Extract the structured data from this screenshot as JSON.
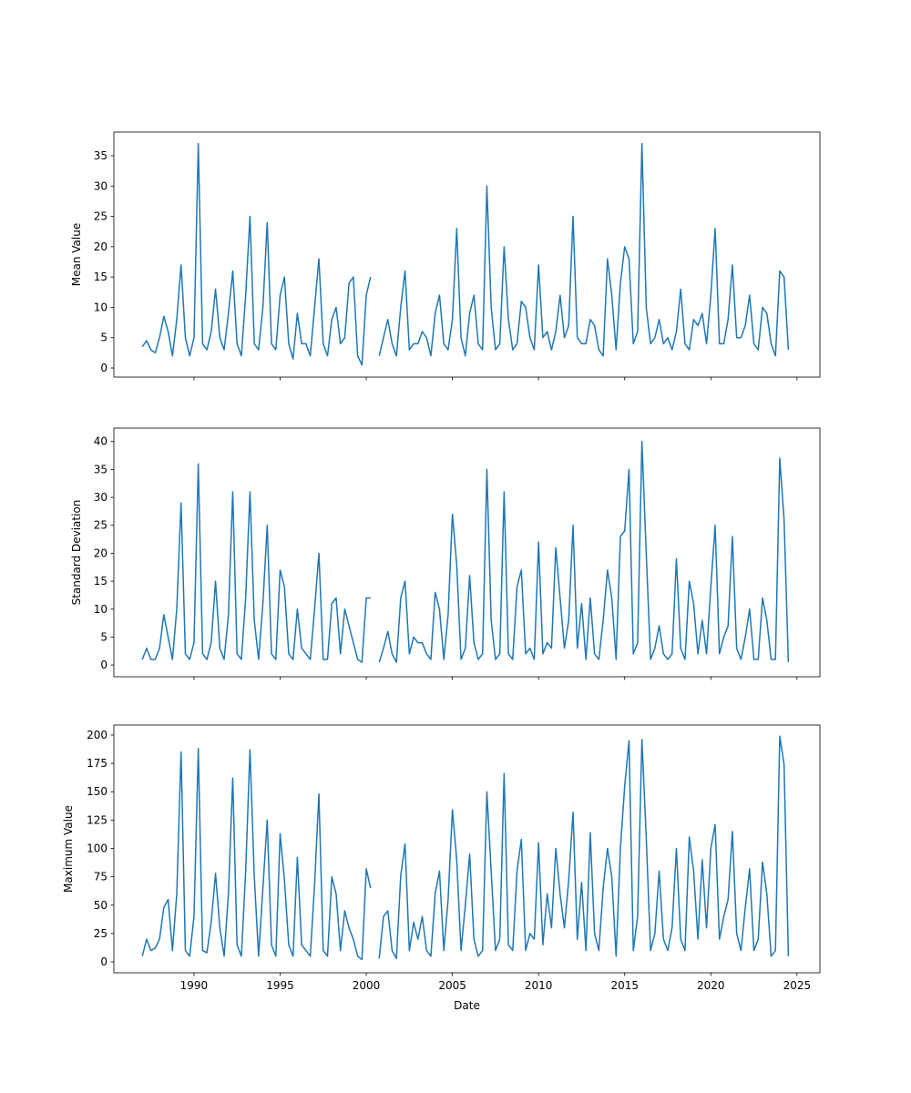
{
  "chart_data": [
    {
      "type": "line",
      "ylabel": "Mean Value",
      "xlim": [
        1985.35,
        2026.33
      ],
      "ylim": [
        -1.5,
        38.9
      ],
      "xticks": [
        1990,
        1995,
        2000,
        2005,
        2010,
        2015,
        2020,
        2025
      ],
      "xtick_labels": false,
      "yticks": [
        0,
        5,
        10,
        15,
        20,
        25,
        30,
        35
      ],
      "x": [
        1987,
        1987.25,
        1987.5,
        1987.75,
        1988,
        1988.25,
        1988.5,
        1988.75,
        1989,
        1989.25,
        1989.5,
        1989.75,
        1990,
        1990.25,
        1990.5,
        1990.75,
        1991,
        1991.25,
        1991.5,
        1991.75,
        1992,
        1992.25,
        1992.5,
        1992.75,
        1993,
        1993.25,
        1993.5,
        1993.75,
        1994,
        1994.25,
        1994.5,
        1994.75,
        1995,
        1995.25,
        1995.5,
        1995.75,
        1996,
        1996.25,
        1996.5,
        1996.75,
        1997,
        1997.25,
        1997.5,
        1997.75,
        1998,
        1998.25,
        1998.5,
        1998.75,
        1999,
        1999.25,
        1999.5,
        1999.75,
        2000,
        2000.25,
        2000.5,
        2000.75,
        2001,
        2001.25,
        2001.5,
        2001.75,
        2002,
        2002.25,
        2002.5,
        2002.75,
        2003,
        2003.25,
        2003.5,
        2003.75,
        2004,
        2004.25,
        2004.5,
        2004.75,
        2005,
        2005.25,
        2005.5,
        2005.75,
        2006,
        2006.25,
        2006.5,
        2006.75,
        2007,
        2007.25,
        2007.5,
        2007.75,
        2008,
        2008.25,
        2008.5,
        2008.75,
        2009,
        2009.25,
        2009.5,
        2009.75,
        2010,
        2010.25,
        2010.5,
        2010.75,
        2011,
        2011.25,
        2011.5,
        2011.75,
        2012,
        2012.25,
        2012.5,
        2012.75,
        2013,
        2013.25,
        2013.5,
        2013.75,
        2014,
        2014.25,
        2014.5,
        2014.75,
        2015,
        2015.25,
        2015.5,
        2015.75,
        2016,
        2016.25,
        2016.5,
        2016.75,
        2017,
        2017.25,
        2017.5,
        2017.75,
        2018,
        2018.25,
        2018.5,
        2018.75,
        2019,
        2019.25,
        2019.5,
        2019.75,
        2020,
        2020.25,
        2020.5,
        2020.75,
        2021,
        2021.25,
        2021.5,
        2021.75,
        2022,
        2022.25,
        2022.5,
        2022.75,
        2023,
        2023.25,
        2023.5,
        2023.75,
        2024,
        2024.25,
        2024.5
      ],
      "series": [
        {
          "color": "#1f77b4",
          "values": [
            3.5,
            4.5,
            3,
            2.5,
            5,
            8.5,
            6,
            2,
            8,
            17,
            5,
            2,
            5,
            37,
            4,
            3,
            6,
            13,
            5,
            3,
            9,
            16,
            4,
            2,
            12,
            25,
            4,
            3,
            10,
            24,
            4,
            3,
            12,
            15,
            4,
            1.5,
            9,
            4,
            4,
            2,
            10,
            18,
            4,
            2,
            8,
            10,
            4,
            5,
            14,
            15,
            2,
            0.5,
            12,
            15,
            null,
            2,
            5,
            8,
            4,
            2,
            10,
            16,
            3,
            4,
            4,
            6,
            5,
            2,
            9,
            12,
            4,
            3,
            8,
            23,
            5,
            2,
            9,
            12,
            4,
            3,
            30,
            10,
            3,
            4,
            20,
            8,
            3,
            4,
            11,
            10,
            5,
            3,
            17,
            5,
            6,
            3,
            6,
            12,
            5,
            7,
            25,
            5,
            4,
            4,
            8,
            7,
            3,
            2,
            18,
            12,
            3,
            14,
            20,
            18,
            4,
            6,
            37,
            10,
            4,
            5,
            8,
            4,
            5,
            3,
            6,
            13,
            4,
            3,
            8,
            7,
            9,
            4,
            12,
            23,
            4,
            4,
            8,
            17,
            5,
            5,
            7,
            12,
            4,
            3,
            10,
            9,
            4,
            2,
            16,
            15,
            3
          ]
        }
      ]
    },
    {
      "type": "line",
      "ylabel": "Standard Deviation",
      "xlim": [
        1985.35,
        2026.33
      ],
      "ylim": [
        -2.1,
        42.4
      ],
      "xticks": [
        1990,
        1995,
        2000,
        2005,
        2010,
        2015,
        2020,
        2025
      ],
      "xtick_labels": false,
      "yticks": [
        0,
        5,
        10,
        15,
        20,
        25,
        30,
        35,
        40
      ],
      "x": [
        1987,
        1987.25,
        1987.5,
        1987.75,
        1988,
        1988.25,
        1988.5,
        1988.75,
        1989,
        1989.25,
        1989.5,
        1989.75,
        1990,
        1990.25,
        1990.5,
        1990.75,
        1991,
        1991.25,
        1991.5,
        1991.75,
        1992,
        1992.25,
        1992.5,
        1992.75,
        1993,
        1993.25,
        1993.5,
        1993.75,
        1994,
        1994.25,
        1994.5,
        1994.75,
        1995,
        1995.25,
        1995.5,
        1995.75,
        1996,
        1996.25,
        1996.5,
        1996.75,
        1997,
        1997.25,
        1997.5,
        1997.75,
        1998,
        1998.25,
        1998.5,
        1998.75,
        1999,
        1999.25,
        1999.5,
        1999.75,
        2000,
        2000.25,
        2000.5,
        2000.75,
        2001,
        2001.25,
        2001.5,
        2001.75,
        2002,
        2002.25,
        2002.5,
        2002.75,
        2003,
        2003.25,
        2003.5,
        2003.75,
        2004,
        2004.25,
        2004.5,
        2004.75,
        2005,
        2005.25,
        2005.5,
        2005.75,
        2006,
        2006.25,
        2006.5,
        2006.75,
        2007,
        2007.25,
        2007.5,
        2007.75,
        2008,
        2008.25,
        2008.5,
        2008.75,
        2009,
        2009.25,
        2009.5,
        2009.75,
        2010,
        2010.25,
        2010.5,
        2010.75,
        2011,
        2011.25,
        2011.5,
        2011.75,
        2012,
        2012.25,
        2012.5,
        2012.75,
        2013,
        2013.25,
        2013.5,
        2013.75,
        2014,
        2014.25,
        2014.5,
        2014.75,
        2015,
        2015.25,
        2015.5,
        2015.75,
        2016,
        2016.25,
        2016.5,
        2016.75,
        2017,
        2017.25,
        2017.5,
        2017.75,
        2018,
        2018.25,
        2018.5,
        2018.75,
        2019,
        2019.25,
        2019.5,
        2019.75,
        2020,
        2020.25,
        2020.5,
        2020.75,
        2021,
        2021.25,
        2021.5,
        2021.75,
        2022,
        2022.25,
        2022.5,
        2022.75,
        2023,
        2023.25,
        2023.5,
        2023.75,
        2024,
        2024.25,
        2024.5
      ],
      "series": [
        {
          "color": "#1f77b4",
          "values": [
            1,
            3,
            1,
            1,
            3,
            9,
            5,
            1,
            10,
            29,
            2,
            1,
            4,
            36,
            2,
            1,
            4,
            15,
            3,
            1,
            9,
            31,
            2,
            1,
            12,
            31,
            8,
            1,
            11,
            25,
            2,
            1,
            17,
            14,
            2,
            1,
            10,
            3,
            2,
            1,
            10,
            20,
            1,
            1,
            11,
            12,
            2,
            10,
            7,
            4,
            1,
            0.5,
            12,
            12,
            null,
            0.5,
            3,
            6,
            2,
            0.5,
            12,
            15,
            2,
            5,
            4,
            4,
            2,
            1,
            13,
            10,
            1,
            9,
            27,
            18,
            1,
            3,
            16,
            4,
            1,
            2,
            35,
            8,
            1,
            2,
            31,
            2,
            1,
            14,
            17,
            2,
            3,
            1,
            22,
            2,
            4,
            3,
            21,
            12,
            3,
            8,
            25,
            3,
            11,
            1,
            12,
            2,
            1,
            8,
            17,
            12,
            1,
            23,
            24,
            35,
            2,
            4,
            40,
            20,
            1,
            3,
            7,
            2,
            1,
            2,
            19,
            3,
            1,
            15,
            11,
            2,
            8,
            2,
            14,
            25,
            2,
            5,
            7,
            23,
            3,
            1,
            5,
            10,
            1,
            1,
            12,
            8,
            1,
            1,
            37,
            26,
            0.5
          ]
        }
      ]
    },
    {
      "type": "line",
      "ylabel": "Maximum Value",
      "xlabel": "Date",
      "xlim": [
        1985.35,
        2026.33
      ],
      "ylim": [
        -9.6,
        208.8
      ],
      "xticks": [
        1990,
        1995,
        2000,
        2005,
        2010,
        2015,
        2020,
        2025
      ],
      "xtick_labels": true,
      "yticks": [
        0,
        25,
        50,
        75,
        100,
        125,
        150,
        175,
        200
      ],
      "x": [
        1987,
        1987.25,
        1987.5,
        1987.75,
        1988,
        1988.25,
        1988.5,
        1988.75,
        1989,
        1989.25,
        1989.5,
        1989.75,
        1990,
        1990.25,
        1990.5,
        1990.75,
        1991,
        1991.25,
        1991.5,
        1991.75,
        1992,
        1992.25,
        1992.5,
        1992.75,
        1993,
        1993.25,
        1993.5,
        1993.75,
        1994,
        1994.25,
        1994.5,
        1994.75,
        1995,
        1995.25,
        1995.5,
        1995.75,
        1996,
        1996.25,
        1996.5,
        1996.75,
        1997,
        1997.25,
        1997.5,
        1997.75,
        1998,
        1998.25,
        1998.5,
        1998.75,
        1999,
        1999.25,
        1999.5,
        1999.75,
        2000,
        2000.25,
        2000.5,
        2000.75,
        2001,
        2001.25,
        2001.5,
        2001.75,
        2002,
        2002.25,
        2002.5,
        2002.75,
        2003,
        2003.25,
        2003.5,
        2003.75,
        2004,
        2004.25,
        2004.5,
        2004.75,
        2005,
        2005.25,
        2005.5,
        2005.75,
        2006,
        2006.25,
        2006.5,
        2006.75,
        2007,
        2007.25,
        2007.5,
        2007.75,
        2008,
        2008.25,
        2008.5,
        2008.75,
        2009,
        2009.25,
        2009.5,
        2009.75,
        2010,
        2010.25,
        2010.5,
        2010.75,
        2011,
        2011.25,
        2011.5,
        2011.75,
        2012,
        2012.25,
        2012.5,
        2012.75,
        2013,
        2013.25,
        2013.5,
        2013.75,
        2014,
        2014.25,
        2014.5,
        2014.75,
        2015,
        2015.25,
        2015.5,
        2015.75,
        2016,
        2016.25,
        2016.5,
        2016.75,
        2017,
        2017.25,
        2017.5,
        2017.75,
        2018,
        2018.25,
        2018.5,
        2018.75,
        2019,
        2019.25,
        2019.5,
        2019.75,
        2020,
        2020.25,
        2020.5,
        2020.75,
        2021,
        2021.25,
        2021.5,
        2021.75,
        2022,
        2022.25,
        2022.5,
        2022.75,
        2023,
        2023.25,
        2023.5,
        2023.75,
        2024,
        2024.25,
        2024.5
      ],
      "series": [
        {
          "color": "#1f77b4",
          "values": [
            5,
            20,
            10,
            12,
            20,
            48,
            55,
            10,
            60,
            185,
            10,
            5,
            40,
            188,
            10,
            8,
            35,
            78,
            30,
            5,
            60,
            162,
            15,
            5,
            80,
            187,
            75,
            5,
            65,
            125,
            15,
            5,
            113,
            72,
            15,
            5,
            92,
            15,
            10,
            5,
            68,
            148,
            10,
            5,
            75,
            60,
            10,
            45,
            30,
            20,
            5,
            2,
            82,
            65,
            null,
            3,
            40,
            45,
            10,
            3,
            76,
            104,
            10,
            35,
            20,
            40,
            10,
            5,
            60,
            80,
            10,
            55,
            134,
            90,
            10,
            50,
            95,
            20,
            5,
            10,
            150,
            80,
            10,
            20,
            166,
            15,
            10,
            80,
            108,
            10,
            25,
            20,
            105,
            15,
            60,
            30,
            100,
            60,
            30,
            72,
            132,
            20,
            70,
            10,
            114,
            25,
            10,
            65,
            100,
            75,
            5,
            100,
            155,
            195,
            10,
            40,
            196,
            110,
            10,
            25,
            80,
            20,
            10,
            30,
            100,
            20,
            10,
            110,
            80,
            20,
            90,
            30,
            100,
            121,
            20,
            40,
            55,
            115,
            25,
            10,
            48,
            82,
            10,
            20,
            88,
            60,
            5,
            10,
            199,
            174,
            5
          ]
        }
      ]
    }
  ]
}
